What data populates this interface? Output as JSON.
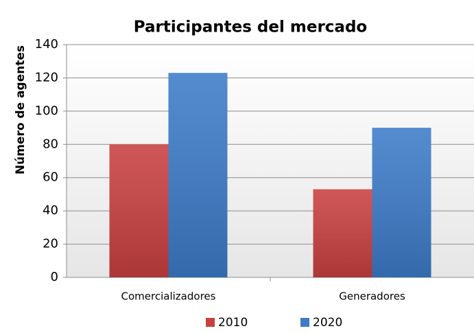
{
  "chart_data": {
    "type": "bar",
    "title": "Participantes del mercado",
    "y_label": "Número de agentes",
    "categories": [
      "Comercializadores",
      "Generadores"
    ],
    "series": [
      {
        "name": "2010",
        "color": "#c94040",
        "values": [
          80,
          53
        ]
      },
      {
        "name": "2020",
        "color": "#3d7cc9",
        "values": [
          123,
          90
        ]
      }
    ],
    "ylim": [
      0,
      140
    ],
    "yticks": [
      0,
      20,
      40,
      60,
      80,
      100,
      120,
      140
    ],
    "grid": true,
    "legend": "bottom"
  }
}
